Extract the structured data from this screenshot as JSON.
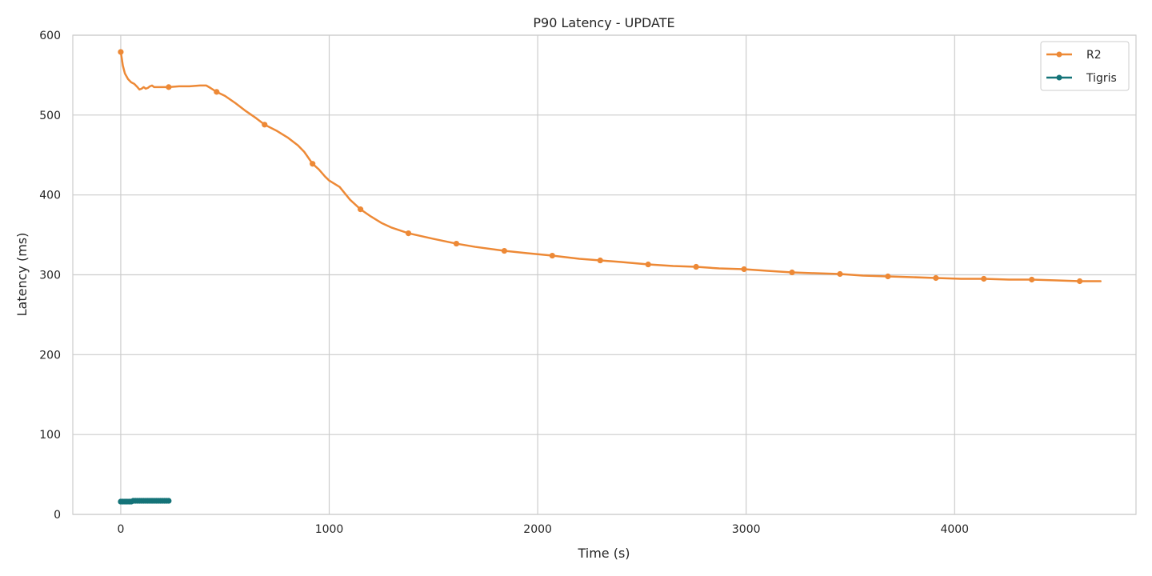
{
  "chart_data": {
    "type": "line",
    "title": "P90 Latency - UPDATE",
    "xlabel": "Time (s)",
    "ylabel": "Latency (ms)",
    "xlim": [
      -230,
      4870
    ],
    "ylim": [
      0,
      600
    ],
    "xticks": [
      0,
      1000,
      2000,
      3000,
      4000
    ],
    "yticks": [
      0,
      100,
      200,
      300,
      400,
      500,
      600
    ],
    "grid": true,
    "legend_position": "top-right",
    "series": [
      {
        "name": "R2",
        "color": "#ED8936",
        "line": [
          [
            0,
            579
          ],
          [
            5,
            571
          ],
          [
            10,
            562
          ],
          [
            20,
            552
          ],
          [
            35,
            545
          ],
          [
            50,
            541
          ],
          [
            65,
            539
          ],
          [
            80,
            535
          ],
          [
            90,
            532
          ],
          [
            100,
            533
          ],
          [
            110,
            535
          ],
          [
            120,
            533
          ],
          [
            130,
            534
          ],
          [
            140,
            536
          ],
          [
            150,
            537
          ],
          [
            160,
            535
          ],
          [
            180,
            535
          ],
          [
            200,
            535
          ],
          [
            230,
            535
          ],
          [
            280,
            536
          ],
          [
            330,
            536
          ],
          [
            380,
            537
          ],
          [
            410,
            537
          ],
          [
            430,
            534
          ],
          [
            460,
            529
          ],
          [
            500,
            524
          ],
          [
            550,
            515
          ],
          [
            600,
            505
          ],
          [
            650,
            496
          ],
          [
            690,
            488
          ],
          [
            750,
            480
          ],
          [
            800,
            472
          ],
          [
            850,
            462
          ],
          [
            880,
            454
          ],
          [
            920,
            439
          ],
          [
            950,
            432
          ],
          [
            980,
            423
          ],
          [
            1000,
            418
          ],
          [
            1050,
            410
          ],
          [
            1100,
            394
          ],
          [
            1150,
            382
          ],
          [
            1200,
            373
          ],
          [
            1250,
            365
          ],
          [
            1300,
            359
          ],
          [
            1380,
            352
          ],
          [
            1500,
            345
          ],
          [
            1610,
            339
          ],
          [
            1700,
            335
          ],
          [
            1840,
            330
          ],
          [
            1950,
            327
          ],
          [
            2070,
            324
          ],
          [
            2200,
            320
          ],
          [
            2300,
            318
          ],
          [
            2400,
            316
          ],
          [
            2530,
            313
          ],
          [
            2650,
            311
          ],
          [
            2760,
            310
          ],
          [
            2870,
            308
          ],
          [
            2990,
            307
          ],
          [
            3100,
            305
          ],
          [
            3220,
            303
          ],
          [
            3330,
            302
          ],
          [
            3450,
            301
          ],
          [
            3560,
            299
          ],
          [
            3680,
            298
          ],
          [
            3800,
            297
          ],
          [
            3910,
            296
          ],
          [
            4030,
            295
          ],
          [
            4140,
            295
          ],
          [
            4260,
            294
          ],
          [
            4370,
            294
          ],
          [
            4490,
            293
          ],
          [
            4600,
            292
          ],
          [
            4700,
            292
          ]
        ],
        "markers": [
          [
            0,
            579
          ],
          [
            230,
            535
          ],
          [
            460,
            529
          ],
          [
            690,
            488
          ],
          [
            920,
            439
          ],
          [
            1150,
            382
          ],
          [
            1380,
            352
          ],
          [
            1610,
            339
          ],
          [
            1840,
            330
          ],
          [
            2070,
            324
          ],
          [
            2300,
            318
          ],
          [
            2530,
            313
          ],
          [
            2760,
            310
          ],
          [
            2990,
            307
          ],
          [
            3220,
            303
          ],
          [
            3450,
            301
          ],
          [
            3680,
            298
          ],
          [
            3910,
            296
          ],
          [
            4140,
            295
          ],
          [
            4370,
            294
          ],
          [
            4600,
            292
          ]
        ]
      },
      {
        "name": "Tigris",
        "color": "#147378",
        "line": [
          [
            0,
            16
          ],
          [
            10,
            16
          ],
          [
            20,
            16
          ],
          [
            30,
            16
          ],
          [
            40,
            16
          ],
          [
            50,
            16
          ],
          [
            60,
            17
          ],
          [
            70,
            17
          ],
          [
            80,
            17
          ],
          [
            90,
            17
          ],
          [
            100,
            17
          ],
          [
            110,
            17
          ],
          [
            120,
            17
          ],
          [
            130,
            17
          ],
          [
            140,
            17
          ],
          [
            150,
            17
          ],
          [
            160,
            17
          ],
          [
            170,
            17
          ],
          [
            180,
            17
          ],
          [
            190,
            17
          ],
          [
            200,
            17
          ],
          [
            210,
            17
          ],
          [
            220,
            17
          ],
          [
            230,
            17
          ]
        ],
        "markers": [
          [
            0,
            16
          ],
          [
            10,
            16
          ],
          [
            20,
            16
          ],
          [
            30,
            16
          ],
          [
            40,
            16
          ],
          [
            50,
            16
          ],
          [
            60,
            17
          ],
          [
            70,
            17
          ],
          [
            80,
            17
          ],
          [
            90,
            17
          ],
          [
            100,
            17
          ],
          [
            110,
            17
          ],
          [
            120,
            17
          ],
          [
            130,
            17
          ],
          [
            140,
            17
          ],
          [
            150,
            17
          ],
          [
            160,
            17
          ],
          [
            170,
            17
          ],
          [
            180,
            17
          ],
          [
            190,
            17
          ],
          [
            200,
            17
          ],
          [
            210,
            17
          ],
          [
            220,
            17
          ],
          [
            230,
            17
          ]
        ]
      }
    ]
  }
}
